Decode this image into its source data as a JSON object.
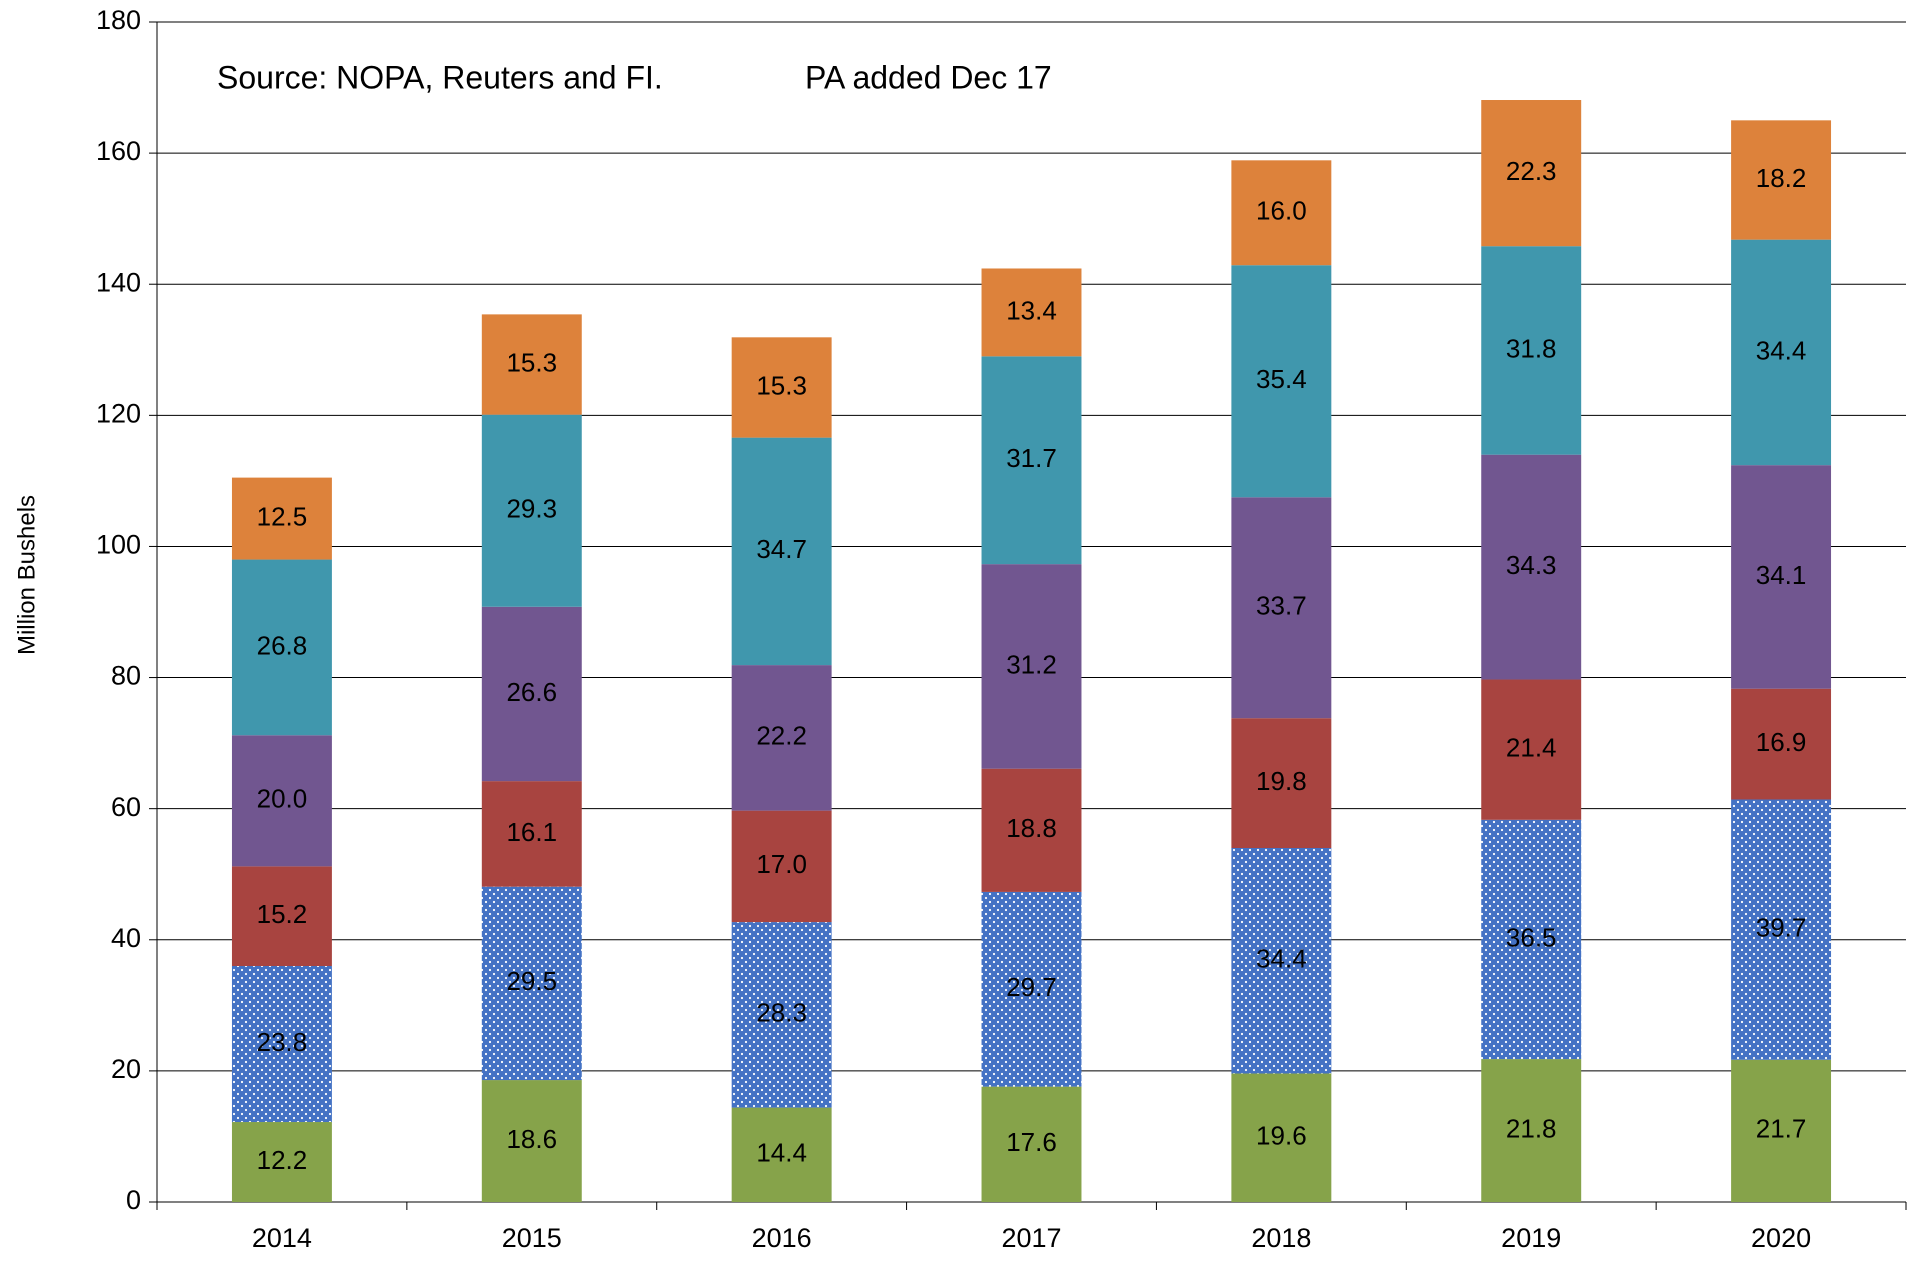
{
  "chart_data": {
    "type": "stacked-bar",
    "y_label": "Million Bushels",
    "annotations": [
      "Source: NOPA, Reuters and FI.",
      "PA added Dec 17"
    ],
    "categories": [
      "2014",
      "2015",
      "2016",
      "2017",
      "2018",
      "2019",
      "2020"
    ],
    "ylim": [
      0,
      180
    ],
    "yticks": [
      0,
      20,
      40,
      60,
      80,
      100,
      120,
      140,
      160,
      180
    ],
    "grid": true,
    "series": [
      {
        "color": "#86a34a",
        "values": [
          12.2,
          18.6,
          14.4,
          17.6,
          19.6,
          21.8,
          21.7
        ],
        "value_labels": [
          "12.2",
          "18.6",
          "14.4",
          "17.6",
          "19.6",
          "21.8",
          "21.7"
        ]
      },
      {
        "color": "#4472c4",
        "pattern": "dots",
        "values": [
          23.8,
          29.5,
          28.3,
          29.7,
          34.4,
          36.5,
          39.7
        ],
        "value_labels": [
          "23.8",
          "29.5",
          "28.3",
          "29.7",
          "34.4",
          "36.5",
          "39.7"
        ]
      },
      {
        "color": "#a84440",
        "values": [
          15.2,
          16.1,
          17.0,
          18.8,
          19.8,
          21.4,
          16.9
        ],
        "value_labels": [
          "15.2",
          "16.1",
          "17.0",
          "18.8",
          "19.8",
          "21.4",
          "16.9"
        ]
      },
      {
        "color": "#715690",
        "values": [
          20.0,
          26.6,
          22.2,
          31.2,
          33.7,
          34.3,
          34.1
        ],
        "value_labels": [
          "20.0",
          "26.6",
          "22.2",
          "31.2",
          "33.7",
          "34.3",
          "34.1"
        ]
      },
      {
        "color": "#4097ad",
        "values": [
          26.8,
          29.3,
          34.7,
          31.7,
          35.4,
          31.8,
          34.4
        ],
        "value_labels": [
          "26.8",
          "29.3",
          "34.7",
          "31.7",
          "35.4",
          "31.8",
          "34.4"
        ]
      },
      {
        "color": "#dd823b",
        "values": [
          12.5,
          15.3,
          15.3,
          13.4,
          16.0,
          22.3,
          18.2
        ],
        "value_labels": [
          "12.5",
          "15.3",
          "15.3",
          "13.4",
          "16.0",
          "22.3",
          "18.2"
        ]
      }
    ]
  }
}
